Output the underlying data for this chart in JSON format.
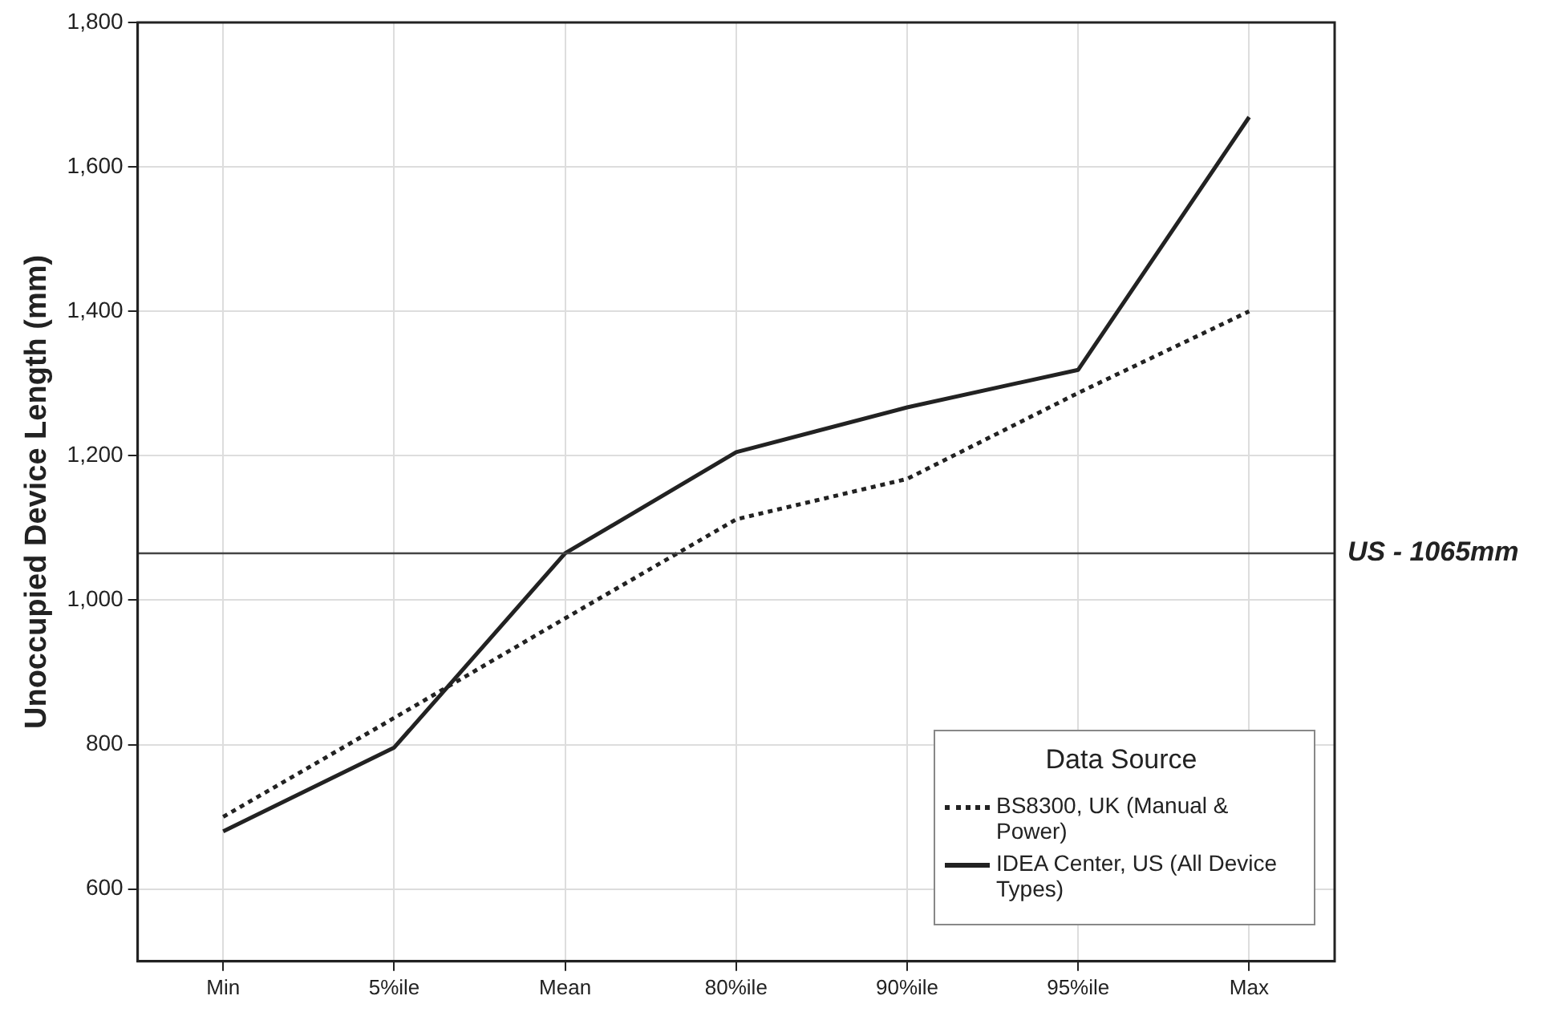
{
  "chart_data": {
    "type": "line",
    "ylabel": "Unoccupied Device Length (mm)",
    "legend_title": "Data Source",
    "categories": [
      "Min",
      "5%ile",
      "Mean",
      "80%ile",
      "90%ile",
      "95%ile",
      "Max"
    ],
    "series": [
      {
        "name": "BS8300, UK (Manual & Power)",
        "color": "#222222",
        "line_style": "dotted",
        "values": [
          700,
          837,
          975,
          1112,
          1168,
          1287,
          1400
        ]
      },
      {
        "name": "IDEA Center, US  (All Device Types)",
        "color": "#222222",
        "line_style": "solid",
        "values": [
          680,
          796,
          1065,
          1205,
          1267,
          1319,
          1669
        ]
      }
    ],
    "ylim": [
      500,
      1800
    ],
    "yticks": [
      600,
      800,
      {
        "value": 1000,
        "label": "1,000"
      },
      {
        "value": 1200,
        "label": "1,200"
      },
      {
        "value": 1400,
        "label": "1,400"
      },
      {
        "value": 1600,
        "label": "1,600"
      },
      {
        "value": 1800,
        "label": "1,800"
      }
    ],
    "ref_lines": [
      {
        "axis": "y",
        "value": 1065,
        "label": "US - 1065mm",
        "color": "#444444"
      }
    ],
    "grid": true,
    "legend": "bottom right",
    "marker": "none"
  }
}
